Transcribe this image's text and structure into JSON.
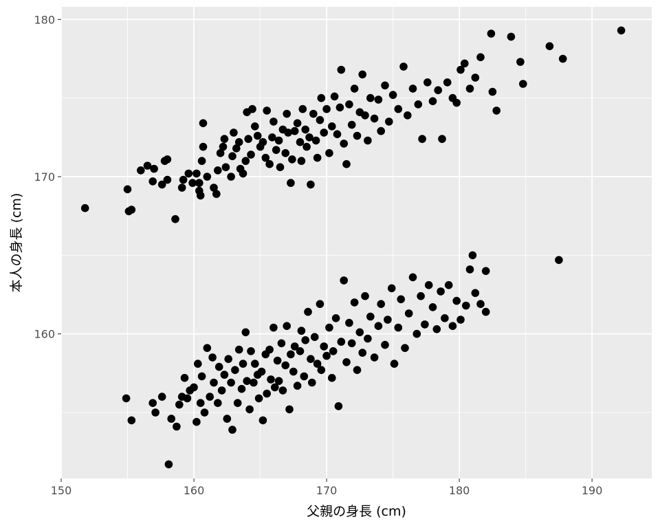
{
  "chart_data": {
    "type": "scatter",
    "title": "",
    "xlabel": "父親の身長 (cm)",
    "ylabel": "本人の身長 (cm)",
    "xlim": [
      150,
      194.5
    ],
    "ylim": [
      150.8,
      180.8
    ],
    "x_ticks": [
      150,
      160,
      170,
      180,
      190
    ],
    "y_ticks": [
      160,
      170,
      180
    ],
    "grid": true,
    "legend": "none",
    "colors": {
      "panel": "#ebebeb",
      "grid": "#ffffff",
      "point": "#000000",
      "tick": "#4d4d4d"
    },
    "series": [
      {
        "points": [
          [
            151.8,
            168.0
          ],
          [
            155.0,
            169.2
          ],
          [
            155.1,
            167.8
          ],
          [
            155.3,
            167.9
          ],
          [
            156.0,
            170.4
          ],
          [
            156.5,
            170.7
          ],
          [
            156.9,
            169.7
          ],
          [
            157.0,
            170.5
          ],
          [
            157.6,
            169.5
          ],
          [
            157.8,
            171.0
          ],
          [
            158.0,
            171.1
          ],
          [
            158.0,
            169.8
          ],
          [
            158.6,
            167.3
          ],
          [
            159.1,
            169.3
          ],
          [
            159.2,
            169.8
          ],
          [
            159.6,
            170.2
          ],
          [
            159.9,
            169.6
          ],
          [
            160.2,
            170.2
          ],
          [
            160.4,
            169.6
          ],
          [
            160.4,
            169.1
          ],
          [
            160.5,
            168.8
          ],
          [
            160.6,
            171.0
          ],
          [
            160.7,
            171.9
          ],
          [
            160.7,
            173.4
          ],
          [
            161.0,
            170.0
          ],
          [
            161.5,
            169.3
          ],
          [
            161.7,
            168.9
          ],
          [
            161.8,
            170.4
          ],
          [
            162.0,
            171.5
          ],
          [
            162.2,
            171.9
          ],
          [
            162.3,
            172.4
          ],
          [
            162.4,
            170.6
          ],
          [
            162.8,
            170.0
          ],
          [
            162.9,
            171.3
          ],
          [
            163.0,
            172.8
          ],
          [
            163.2,
            171.8
          ],
          [
            163.4,
            172.2
          ],
          [
            163.5,
            170.5
          ],
          [
            163.7,
            170.2
          ],
          [
            163.9,
            171.0
          ],
          [
            164.0,
            174.1
          ],
          [
            164.1,
            172.4
          ],
          [
            164.3,
            171.4
          ],
          [
            164.4,
            174.3
          ],
          [
            164.6,
            173.2
          ],
          [
            164.8,
            172.6
          ],
          [
            165.0,
            171.9
          ],
          [
            165.2,
            172.2
          ],
          [
            165.4,
            171.2
          ],
          [
            165.5,
            174.2
          ],
          [
            165.7,
            170.8
          ],
          [
            165.9,
            172.5
          ],
          [
            166.0,
            173.5
          ],
          [
            166.2,
            171.7
          ],
          [
            166.4,
            172.3
          ],
          [
            166.5,
            170.6
          ],
          [
            166.7,
            173.0
          ],
          [
            166.9,
            171.5
          ],
          [
            167.0,
            174.0
          ],
          [
            167.1,
            172.8
          ],
          [
            167.3,
            169.6
          ],
          [
            167.4,
            171.1
          ],
          [
            167.6,
            172.9
          ],
          [
            167.8,
            173.4
          ],
          [
            168.0,
            172.2
          ],
          [
            168.1,
            171.0
          ],
          [
            168.2,
            174.3
          ],
          [
            168.4,
            173.0
          ],
          [
            168.5,
            171.9
          ],
          [
            168.7,
            172.5
          ],
          [
            168.8,
            169.5
          ],
          [
            169.0,
            174.0
          ],
          [
            169.2,
            172.3
          ],
          [
            169.3,
            171.2
          ],
          [
            169.5,
            173.6
          ],
          [
            169.6,
            175.0
          ],
          [
            169.8,
            172.8
          ],
          [
            170.0,
            174.3
          ],
          [
            170.2,
            171.5
          ],
          [
            170.4,
            173.2
          ],
          [
            170.6,
            175.1
          ],
          [
            170.8,
            172.7
          ],
          [
            171.0,
            174.4
          ],
          [
            171.1,
            176.8
          ],
          [
            171.3,
            172.1
          ],
          [
            171.5,
            170.8
          ],
          [
            171.7,
            174.6
          ],
          [
            171.9,
            173.3
          ],
          [
            172.1,
            175.6
          ],
          [
            172.3,
            172.6
          ],
          [
            172.5,
            174.1
          ],
          [
            172.7,
            176.5
          ],
          [
            172.9,
            173.9
          ],
          [
            173.1,
            172.3
          ],
          [
            173.3,
            175.0
          ],
          [
            173.6,
            173.7
          ],
          [
            173.9,
            174.9
          ],
          [
            174.1,
            172.9
          ],
          [
            174.4,
            175.8
          ],
          [
            174.7,
            173.5
          ],
          [
            175.0,
            175.2
          ],
          [
            175.4,
            174.3
          ],
          [
            175.8,
            177.0
          ],
          [
            176.1,
            173.9
          ],
          [
            176.5,
            175.6
          ],
          [
            176.9,
            174.6
          ],
          [
            177.2,
            172.4
          ],
          [
            177.6,
            176.0
          ],
          [
            178.0,
            174.8
          ],
          [
            178.4,
            175.5
          ],
          [
            178.7,
            172.4
          ],
          [
            179.1,
            176.0
          ],
          [
            179.5,
            175.0
          ],
          [
            179.8,
            174.7
          ],
          [
            180.1,
            176.8
          ],
          [
            180.4,
            177.2
          ],
          [
            180.8,
            175.6
          ],
          [
            181.2,
            176.3
          ],
          [
            181.6,
            177.6
          ],
          [
            182.4,
            179.1
          ],
          [
            182.5,
            175.4
          ],
          [
            182.8,
            174.2
          ],
          [
            183.9,
            178.9
          ],
          [
            184.6,
            177.3
          ],
          [
            184.8,
            175.9
          ],
          [
            186.8,
            178.3
          ],
          [
            187.8,
            177.5
          ],
          [
            192.2,
            179.3
          ]
        ]
      },
      {
        "points": [
          [
            154.9,
            155.9
          ],
          [
            155.3,
            154.5
          ],
          [
            156.9,
            155.6
          ],
          [
            157.1,
            155.0
          ],
          [
            157.6,
            156.0
          ],
          [
            158.1,
            151.7
          ],
          [
            158.3,
            154.6
          ],
          [
            158.7,
            154.1
          ],
          [
            158.9,
            155.5
          ],
          [
            159.1,
            156.0
          ],
          [
            159.3,
            157.2
          ],
          [
            159.5,
            155.9
          ],
          [
            159.7,
            156.4
          ],
          [
            160.0,
            156.6
          ],
          [
            160.2,
            154.4
          ],
          [
            160.3,
            158.1
          ],
          [
            160.5,
            155.6
          ],
          [
            160.6,
            157.3
          ],
          [
            160.8,
            155.0
          ],
          [
            161.0,
            159.1
          ],
          [
            161.2,
            156.0
          ],
          [
            161.4,
            158.5
          ],
          [
            161.5,
            156.9
          ],
          [
            161.8,
            155.6
          ],
          [
            161.9,
            157.9
          ],
          [
            162.1,
            156.4
          ],
          [
            162.3,
            157.4
          ],
          [
            162.5,
            154.6
          ],
          [
            162.6,
            158.4
          ],
          [
            162.8,
            156.9
          ],
          [
            162.9,
            153.9
          ],
          [
            163.1,
            157.7
          ],
          [
            163.3,
            155.6
          ],
          [
            163.4,
            159.0
          ],
          [
            163.6,
            156.5
          ],
          [
            163.7,
            158.1
          ],
          [
            163.9,
            160.1
          ],
          [
            164.0,
            157.0
          ],
          [
            164.2,
            155.2
          ],
          [
            164.3,
            158.9
          ],
          [
            164.5,
            156.9
          ],
          [
            164.6,
            158.1
          ],
          [
            164.8,
            157.4
          ],
          [
            164.9,
            155.9
          ],
          [
            165.1,
            157.6
          ],
          [
            165.2,
            154.5
          ],
          [
            165.4,
            158.7
          ],
          [
            165.5,
            156.2
          ],
          [
            165.7,
            159.0
          ],
          [
            165.8,
            157.1
          ],
          [
            166.0,
            160.4
          ],
          [
            166.1,
            156.6
          ],
          [
            166.3,
            158.3
          ],
          [
            166.4,
            157.0
          ],
          [
            166.6,
            159.4
          ],
          [
            166.7,
            156.4
          ],
          [
            166.9,
            158.0
          ],
          [
            167.0,
            160.5
          ],
          [
            167.2,
            155.2
          ],
          [
            167.3,
            158.7
          ],
          [
            167.5,
            157.6
          ],
          [
            167.6,
            159.2
          ],
          [
            167.8,
            156.7
          ],
          [
            168.0,
            158.9
          ],
          [
            168.1,
            160.2
          ],
          [
            168.3,
            157.3
          ],
          [
            168.4,
            159.6
          ],
          [
            168.6,
            161.4
          ],
          [
            168.8,
            158.4
          ],
          [
            168.9,
            156.9
          ],
          [
            169.1,
            159.8
          ],
          [
            169.3,
            158.1
          ],
          [
            169.5,
            161.9
          ],
          [
            169.6,
            157.7
          ],
          [
            169.8,
            159.2
          ],
          [
            170.0,
            158.6
          ],
          [
            170.2,
            160.4
          ],
          [
            170.4,
            157.2
          ],
          [
            170.5,
            158.9
          ],
          [
            170.7,
            161.0
          ],
          [
            170.9,
            155.4
          ],
          [
            171.1,
            159.5
          ],
          [
            171.3,
            163.4
          ],
          [
            171.5,
            158.2
          ],
          [
            171.7,
            160.7
          ],
          [
            171.9,
            159.4
          ],
          [
            172.1,
            162.0
          ],
          [
            172.3,
            157.7
          ],
          [
            172.5,
            160.1
          ],
          [
            172.7,
            158.8
          ],
          [
            172.9,
            162.4
          ],
          [
            173.1,
            159.7
          ],
          [
            173.3,
            161.1
          ],
          [
            173.6,
            158.5
          ],
          [
            173.9,
            160.5
          ],
          [
            174.1,
            161.9
          ],
          [
            174.4,
            159.3
          ],
          [
            174.6,
            160.9
          ],
          [
            174.9,
            162.9
          ],
          [
            175.1,
            158.1
          ],
          [
            175.4,
            160.4
          ],
          [
            175.6,
            162.2
          ],
          [
            175.9,
            159.1
          ],
          [
            176.2,
            161.3
          ],
          [
            176.5,
            163.6
          ],
          [
            176.8,
            160.0
          ],
          [
            177.1,
            162.4
          ],
          [
            177.4,
            160.6
          ],
          [
            177.7,
            163.1
          ],
          [
            178.0,
            161.7
          ],
          [
            178.3,
            160.3
          ],
          [
            178.6,
            162.7
          ],
          [
            178.9,
            161.0
          ],
          [
            179.2,
            163.1
          ],
          [
            179.5,
            160.5
          ],
          [
            179.8,
            162.1
          ],
          [
            180.1,
            160.9
          ],
          [
            180.5,
            161.8
          ],
          [
            180.8,
            164.1
          ],
          [
            181.0,
            165.0
          ],
          [
            181.2,
            162.6
          ],
          [
            181.6,
            161.9
          ],
          [
            182.0,
            161.4
          ],
          [
            182.0,
            164.0
          ],
          [
            187.5,
            164.7
          ]
        ]
      }
    ]
  }
}
